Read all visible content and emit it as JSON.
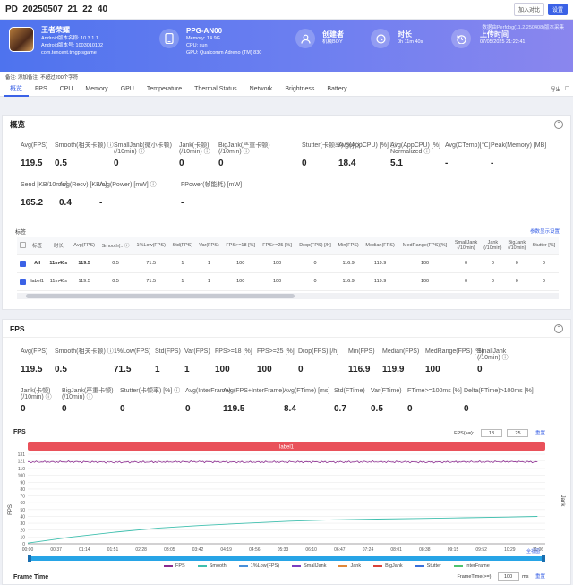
{
  "window": {
    "title": "PD_20250507_21_22_40",
    "btn_compare": "加入对比",
    "btn_settings": "设置"
  },
  "app": {
    "name": "王者荣耀",
    "line1": "Android版本名称: 10.3.1.1",
    "line2": "Android版本号: 1003010102",
    "line3": "com.tencent.tmgp.sgame"
  },
  "device": {
    "model": "PPG-AN00",
    "memory": "Memory: 14.9G",
    "cpu": "CPU: sun",
    "gpu": "GPU: Qualcomm Adreno (TM) 830"
  },
  "creator": {
    "title": "创建者",
    "value": "机械BOY"
  },
  "duration": {
    "title": "时长",
    "value": "0h 11m 40s"
  },
  "upload": {
    "title": "上传时间",
    "value": "07/05/2025 21:22:41"
  },
  "data_source": "数据由Perfdog(11.2.250408)版本采集",
  "remark": "备注: 添加备注, 不超过200个字符",
  "tabs": [
    "概览",
    "FPS",
    "CPU",
    "Memory",
    "GPU",
    "Temperature",
    "Thermal Status",
    "Network",
    "Brightness",
    "Battery"
  ],
  "tab_tools": {
    "export": "导出",
    "icon": "☐"
  },
  "overview": {
    "title": "概览",
    "row1": [
      {
        "label": "Avg(FPS)",
        "value": "119.5"
      },
      {
        "label": "Smooth(相关卡顿) ⓘ",
        "value": "0.5"
      },
      {
        "label": "SmallJank(微小卡顿)\n(/10min) ⓘ",
        "value": "0"
      },
      {
        "label": "Jank(卡顿)\n(/10min) ⓘ",
        "value": "0"
      },
      {
        "label": "BigJank(严重卡顿)\n(/10min) ⓘ",
        "value": "0"
      },
      {
        "label": "Stutter(卡顿率) [%] ⓘ",
        "value": "0"
      },
      {
        "label": "Avg(AppCPU) [%] ⓘ",
        "value": "18.4"
      },
      {
        "label": "Avg(AppCPU) [%]\nNormalized ⓘ",
        "value": "5.1"
      },
      {
        "label": "Avg(CTemp)[℃]",
        "value": "-"
      },
      {
        "label": "Peak(Memory) [MB]",
        "value": "-"
      }
    ],
    "row2": [
      {
        "label": "Send [KB/10min]",
        "value": "165.2"
      },
      {
        "label": "Avg(Recv) [KB/s]",
        "value": "0.4"
      },
      {
        "label": "Avg(Power) [mW] ⓘ",
        "value": "-"
      },
      {
        "label": "FPower(帧能耗) [mW]",
        "value": "-"
      }
    ],
    "tags_label": "标签",
    "params_link": "参数显示设置",
    "table_headers": [
      "标签",
      "时长",
      "Avg(FPS)",
      "Smooth(.. ⓘ",
      "1%Low(FPS)",
      "Std(FPS)",
      "Var(FPS)",
      "FPS>=18 [%]",
      "FPS>=25 [%]",
      "Drop(FPS) [/h]",
      "Min(FPS)",
      "Median(FPS)",
      "MedRange(FPS)[%]",
      "SmallJank\n(/10min)",
      "Jank\n(/10min)",
      "BigJank\n(/10min)",
      "Stutter [%]"
    ],
    "table_rows": [
      [
        "All",
        "11m40s",
        "119.5",
        "0.5",
        "71.5",
        "1",
        "1",
        "100",
        "100",
        "0",
        "116.9",
        "119.9",
        "100",
        "0",
        "0",
        "0",
        "0"
      ],
      [
        "label1",
        "11m40s",
        "119.5",
        "0.5",
        "71.5",
        "1",
        "1",
        "100",
        "100",
        "0",
        "116.9",
        "119.9",
        "100",
        "0",
        "0",
        "0",
        "0"
      ]
    ]
  },
  "fps_section": {
    "title": "FPS",
    "row1": [
      {
        "label": "Avg(FPS)",
        "value": "119.5"
      },
      {
        "label": "Smooth(相关卡顿) ⓘ",
        "value": "0.5"
      },
      {
        "label": "1%Low(FPS)",
        "value": "71.5"
      },
      {
        "label": "Std(FPS)",
        "value": "1"
      },
      {
        "label": "Var(FPS)",
        "value": "1"
      },
      {
        "label": "FPS>=18 [%]",
        "value": "100"
      },
      {
        "label": "FPS>=25 [%]",
        "value": "100"
      },
      {
        "label": "Drop(FPS) [/h]",
        "value": "0"
      },
      {
        "label": "Min(FPS)",
        "value": "116.9"
      },
      {
        "label": "Median(FPS)",
        "value": "119.9"
      },
      {
        "label": "MedRange(FPS) [%]",
        "value": "100"
      },
      {
        "label": "SmallJank\n(/10min) ⓘ",
        "value": "0"
      }
    ],
    "row2": [
      {
        "label": "Jank(卡顿)\n(/10min) ⓘ",
        "value": "0"
      },
      {
        "label": "BigJank(严重卡顿)\n(/10min) ⓘ",
        "value": "0"
      },
      {
        "label": "Stutter(卡顿率) [%] ⓘ",
        "value": "0"
      },
      {
        "label": "Avg(InterFrame)",
        "value": "0"
      },
      {
        "label": "Avg(FPS+InterFrame)",
        "value": "119.5"
      },
      {
        "label": "Avg(FTime) [ms]",
        "value": "8.4"
      },
      {
        "label": "Std(FTime)",
        "value": "0.7"
      },
      {
        "label": "Var(FTime)",
        "value": "0.5"
      },
      {
        "label": "FTime>=100ms [%]",
        "value": "0"
      },
      {
        "label": "Delta(FTime)>100ms [%]",
        "value": "0"
      }
    ],
    "chart_title": "FPS",
    "fps_threshold_label": "FPS(>=):",
    "fps_threshold_1": "18",
    "fps_threshold_2": "25",
    "reset_link": "重置",
    "label_bar": "label1",
    "y_axis_label": "FPS",
    "y2_axis_label": "Jank",
    "ft_label": "Frame Time",
    "ft_threshold_label": "FrameTime(>=):",
    "ft_threshold": "100",
    "ft_unit": "ms",
    "ft_reset": "重置",
    "zoom_link": "全视图"
  },
  "chart_data": {
    "type": "line",
    "title": "FPS",
    "ylabel": "FPS",
    "ylim": [
      0,
      131
    ],
    "yticks": [
      0,
      10,
      20,
      30,
      40,
      50,
      60,
      70,
      80,
      90,
      100,
      110,
      121,
      131
    ],
    "xticks": [
      "00:00",
      "00:37",
      "01:14",
      "01:51",
      "02:28",
      "03:05",
      "03:42",
      "04:19",
      "04:56",
      "05:33",
      "06:10",
      "06:47",
      "07:24",
      "08:01",
      "08:38",
      "09:15",
      "09:52",
      "10:29",
      "11:06"
    ],
    "legend_position": "bottom",
    "series": [
      {
        "name": "FPS",
        "color": "#8a2b8f",
        "x_minutes": [
          0,
          1,
          2,
          3,
          4,
          5,
          6,
          7,
          8,
          9,
          10,
          11,
          11.67
        ],
        "values": [
          119.5,
          119.8,
          119.2,
          119.6,
          119.9,
          119.3,
          119.7,
          119.5,
          119.8,
          119.4,
          119.6,
          119.9,
          119.5
        ]
      },
      {
        "name": "Smooth",
        "color": "#3fbfae",
        "x_minutes": [
          0,
          1,
          2,
          3,
          4,
          5,
          6,
          7,
          8,
          9,
          10,
          11,
          11.67
        ],
        "values": [
          1,
          10,
          17,
          23,
          27,
          30,
          33,
          35,
          36,
          37,
          38,
          39,
          40
        ]
      },
      {
        "name": "1%Low(FPS)",
        "color": "#4a90d9",
        "values": []
      },
      {
        "name": "SmallJank",
        "color": "#7b3fbf",
        "values": [
          0
        ]
      },
      {
        "name": "Jank",
        "color": "#e0883a",
        "values": [
          0
        ]
      },
      {
        "name": "BigJank",
        "color": "#d9443a",
        "values": [
          0
        ]
      },
      {
        "name": "Stutter",
        "color": "#3a6fd9",
        "values": [
          0
        ]
      },
      {
        "name": "InterFrame",
        "color": "#4fc26f",
        "values": [
          0
        ]
      }
    ]
  }
}
